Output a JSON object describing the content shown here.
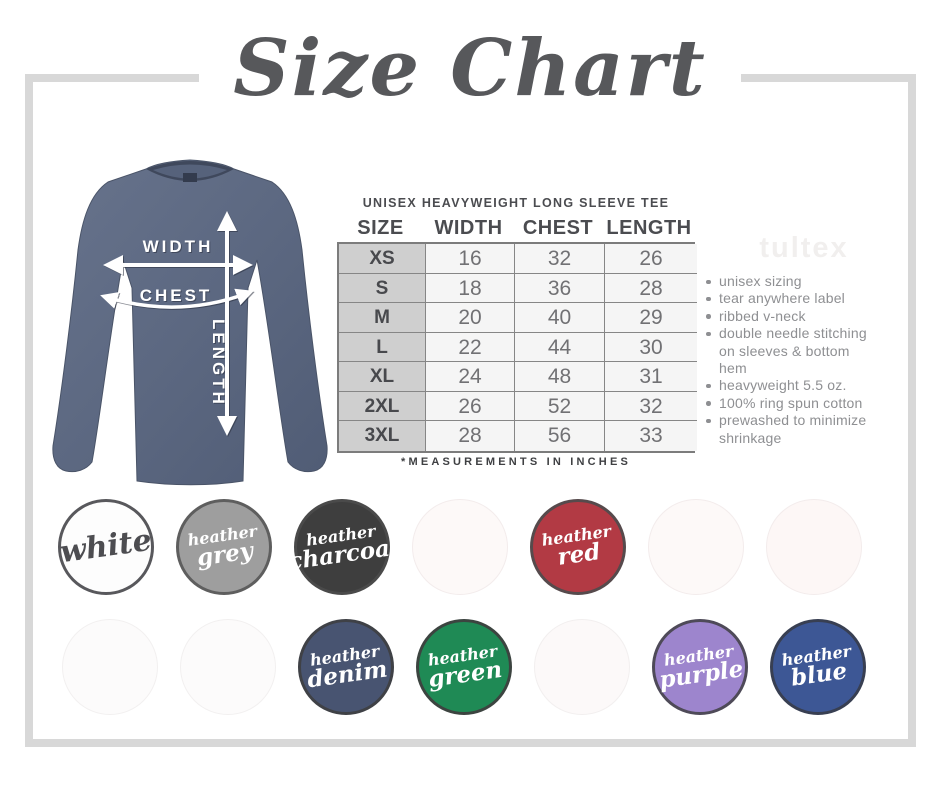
{
  "title": "Size Chart",
  "watermark": "tultex",
  "product": {
    "name": "UNISEX HEAVYWEIGHT LONG SLEEVE TEE",
    "features": [
      "unisex sizing",
      "tear anywhere label",
      "ribbed v-neck",
      "double needle stitching on sleeves & bottom hem",
      "heavyweight 5.5 oz.",
      "100% ring spun cotton",
      "prewashed to minimize shrinkage"
    ]
  },
  "diagram": {
    "labels": [
      "WIDTH",
      "CHEST",
      "LENGTH"
    ],
    "shirt_color": "#5d6880"
  },
  "chart_data": {
    "type": "table",
    "title": "UNISEX HEAVYWEIGHT LONG SLEEVE TEE",
    "columns": [
      "SIZE",
      "WIDTH",
      "CHEST",
      "LENGTH"
    ],
    "rows": [
      [
        "XS",
        "16",
        "32",
        "26"
      ],
      [
        "S",
        "18",
        "36",
        "28"
      ],
      [
        "M",
        "20",
        "40",
        "29"
      ],
      [
        "L",
        "22",
        "44",
        "30"
      ],
      [
        "XL",
        "24",
        "48",
        "31"
      ],
      [
        "2XL",
        "26",
        "52",
        "32"
      ],
      [
        "3XL",
        "28",
        "56",
        "33"
      ]
    ],
    "units_note": "*MEASUREMENTS IN INCHES"
  },
  "swatches": {
    "row1": [
      {
        "name": "white",
        "lines": [
          "white"
        ],
        "bg": "#fdfdfd",
        "text_color": "#4d4d51",
        "ring": "#58585c",
        "faded": false
      },
      {
        "name": "heather-grey",
        "lines": [
          "heather",
          "grey"
        ],
        "bg": "#9e9e9e",
        "text_color": "#ffffff",
        "ring": "#5e5e5e",
        "faded": false
      },
      {
        "name": "heather-charcoal",
        "lines": [
          "heather",
          "charcoal"
        ],
        "bg": "#3e3e3e",
        "text_color": "#ffffff",
        "ring": "#4a4a4a",
        "faded": false
      },
      {
        "name": "faded-swatch-1",
        "lines": [],
        "bg": "#fdf9f8",
        "text_color": "#ffffff",
        "ring": "#f3ecec",
        "faded": true
      },
      {
        "name": "heather-red",
        "lines": [
          "heather",
          "red"
        ],
        "bg": "#b23a44",
        "text_color": "#ffffff",
        "ring": "#564a4c",
        "faded": false
      },
      {
        "name": "faded-swatch-2",
        "lines": [],
        "bg": "#fdf9f8",
        "text_color": "#ffffff",
        "ring": "#f3ecec",
        "faded": true
      },
      {
        "name": "faded-swatch-3",
        "lines": [],
        "bg": "#fdf7f6",
        "text_color": "#ffffff",
        "ring": "#f3ecec",
        "faded": true
      }
    ],
    "row2": [
      {
        "name": "faded-swatch-4",
        "lines": [],
        "bg": "#fcfbfb",
        "text_color": "#ffffff",
        "ring": "#f2f0f0",
        "faded": true
      },
      {
        "name": "faded-swatch-5",
        "lines": [],
        "bg": "#fcfbfb",
        "text_color": "#ffffff",
        "ring": "#f2f0f0",
        "faded": true
      },
      {
        "name": "heather-denim",
        "lines": [
          "heather",
          "denim"
        ],
        "bg": "#485471",
        "text_color": "#ffffff",
        "ring": "#3f4146",
        "faded": false
      },
      {
        "name": "heather-green",
        "lines": [
          "heather",
          "green"
        ],
        "bg": "#1f8a55",
        "text_color": "#ffffff",
        "ring": "#3c4440",
        "faded": false
      },
      {
        "name": "faded-swatch-6",
        "lines": [],
        "bg": "#fcf9f9",
        "text_color": "#ffffff",
        "ring": "#f2efef",
        "faded": true
      },
      {
        "name": "heather-purple",
        "lines": [
          "heather",
          "purple"
        ],
        "bg": "#9d85cd",
        "text_color": "#ffffff",
        "ring": "#4e4a58",
        "faded": false
      },
      {
        "name": "heather-blue",
        "lines": [
          "heather",
          "blue"
        ],
        "bg": "#3d5795",
        "text_color": "#ffffff",
        "ring": "#383f52",
        "faded": false
      }
    ]
  }
}
